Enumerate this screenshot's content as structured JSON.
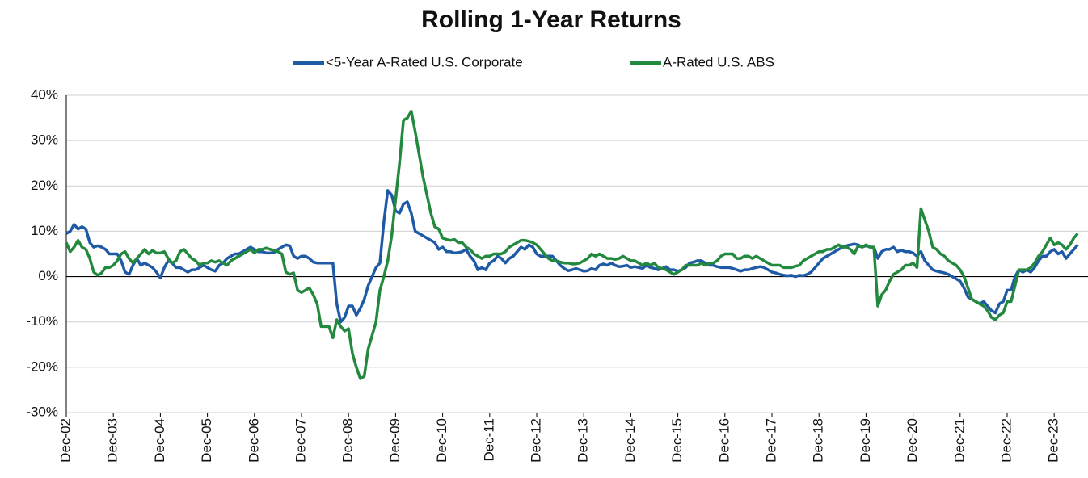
{
  "chart_data": {
    "type": "line",
    "title": "Rolling 1-Year Returns",
    "categories": [
      "Dec-02",
      null,
      null,
      null,
      null,
      null,
      null,
      null,
      null,
      null,
      null,
      null,
      "Dec-03",
      null,
      null,
      null,
      null,
      null,
      null,
      null,
      null,
      null,
      null,
      null,
      "Dec-04",
      null,
      null,
      null,
      null,
      null,
      null,
      null,
      null,
      null,
      null,
      null,
      "Dec-05",
      null,
      null,
      null,
      null,
      null,
      null,
      null,
      null,
      null,
      null,
      null,
      "Dec-06",
      null,
      null,
      null,
      null,
      null,
      null,
      null,
      null,
      null,
      null,
      null,
      "Dec-07",
      null,
      null,
      null,
      null,
      null,
      null,
      null,
      null,
      null,
      null,
      null,
      "Dec-08",
      null,
      null,
      null,
      null,
      null,
      null,
      null,
      null,
      null,
      null,
      null,
      "Dec-09",
      null,
      null,
      null,
      null,
      null,
      null,
      null,
      null,
      null,
      null,
      null,
      "Dec-10",
      null,
      null,
      null,
      null,
      null,
      null,
      null,
      null,
      null,
      null,
      null,
      "Dec-11",
      null,
      null,
      null,
      null,
      null,
      null,
      null,
      null,
      null,
      null,
      null,
      "Dec-12",
      null,
      null,
      null,
      null,
      null,
      null,
      null,
      null,
      null,
      null,
      null,
      "Dec-13",
      null,
      null,
      null,
      null,
      null,
      null,
      null,
      null,
      null,
      null,
      null,
      "Dec-14",
      null,
      null,
      null,
      null,
      null,
      null,
      null,
      null,
      null,
      null,
      null,
      "Dec-15",
      null,
      null,
      null,
      null,
      null,
      null,
      null,
      null,
      null,
      null,
      null,
      "Dec-16",
      null,
      null,
      null,
      null,
      null,
      null,
      null,
      null,
      null,
      null,
      null,
      "Dec-17",
      null,
      null,
      null,
      null,
      null,
      null,
      null,
      null,
      null,
      null,
      null,
      "Dec-18",
      null,
      null,
      null,
      null,
      null,
      null,
      null,
      null,
      null,
      null,
      null,
      "Dec-19",
      null,
      null,
      null,
      null,
      null,
      null,
      null,
      null,
      null,
      null,
      null,
      "Dec-20",
      null,
      null,
      null,
      null,
      null,
      null,
      null,
      null,
      null,
      null,
      null,
      "Dec-21",
      null,
      null,
      null,
      null,
      null,
      null,
      null,
      null,
      null,
      null,
      null,
      "Dec-22",
      null,
      null,
      null,
      null,
      null,
      null,
      null,
      null,
      null,
      null,
      null,
      "Dec-23",
      null,
      null,
      null,
      null,
      null,
      null
    ],
    "series": [
      {
        "name": "<5-Year A-Rated U.S. Corporate",
        "color": "#1f5aa6",
        "values": [
          9.5,
          10,
          11.5,
          10.5,
          11,
          10.5,
          7.5,
          6.5,
          6.8,
          6.5,
          6,
          5,
          5,
          5,
          3.5,
          1,
          0.5,
          2.5,
          4,
          2.5,
          3,
          2.5,
          2,
          1,
          -0.3,
          2,
          3.5,
          3,
          2,
          2,
          1.5,
          1,
          1.5,
          1.5,
          2,
          2.5,
          2,
          1.5,
          1.2,
          2.5,
          3,
          4,
          4.5,
          5,
          5,
          5.5,
          6,
          6.5,
          6,
          5.5,
          5.5,
          5.2,
          5.2,
          5.3,
          6,
          6.5,
          7,
          6.8,
          4.5,
          4,
          4.5,
          4.5,
          4,
          3.2,
          3,
          3,
          3,
          3,
          3,
          -6,
          -10,
          -9,
          -6.5,
          -6.5,
          -8.5,
          -7,
          -5,
          -2,
          0,
          2,
          3,
          12,
          19,
          18,
          14.5,
          14,
          16,
          16.5,
          14,
          10,
          9.5,
          9,
          8.5,
          8,
          7.5,
          6,
          6.5,
          5.5,
          5.5,
          5.2,
          5.3,
          5.5,
          6,
          4.5,
          3.5,
          1.5,
          2,
          1.5,
          3,
          3.5,
          4.5,
          4,
          3,
          4,
          4.5,
          5.5,
          6.5,
          6,
          7,
          6.5,
          5,
          4.5,
          4.5,
          4.5,
          4.5,
          3.5,
          2.5,
          1.8,
          1.3,
          1.5,
          1.8,
          1.5,
          1.2,
          1.3,
          1.8,
          1.5,
          2.5,
          2.8,
          2.5,
          3,
          2.5,
          2.2,
          2.3,
          2.5,
          2,
          2.2,
          2,
          1.8,
          2.5,
          2,
          1.8,
          1.5,
          1.8,
          2.2,
          1.5,
          1.5,
          1.2,
          1.5,
          2,
          3,
          3.2,
          3.5,
          3.5,
          3,
          2.5,
          2.5,
          2.2,
          2,
          2,
          2,
          1.8,
          1.5,
          1.2,
          1.5,
          1.5,
          1.8,
          2,
          2.2,
          2,
          1.5,
          1,
          0.8,
          0.5,
          0.3,
          0.2,
          0.3,
          0,
          0.3,
          0.2,
          0.5,
          1,
          2,
          3,
          4,
          4.5,
          5,
          5.5,
          6,
          6.5,
          6.8,
          7,
          7.2,
          7,
          6.5,
          6.8,
          6.5,
          6.5,
          4,
          5.5,
          6,
          6,
          6.5,
          5.5,
          5.8,
          5.5,
          5.5,
          5.2,
          4.5,
          5.5,
          3.5,
          2.5,
          1.5,
          1.2,
          1,
          0.8,
          0.5,
          0,
          -0.5,
          -1,
          -2.5,
          -4.5,
          -5,
          -5.5,
          -6,
          -5.5,
          -6.5,
          -7.5,
          -8,
          -6,
          -5.5,
          -3,
          -3,
          0,
          1.5,
          1,
          1.5,
          1,
          2,
          3.5,
          4.5,
          4.5,
          5.5,
          6,
          5,
          5.5,
          4,
          5,
          6,
          7
        ]
      },
      {
        "name": "A-Rated U.S. ABS",
        "color": "#23893e",
        "values": [
          7.5,
          5.5,
          6.5,
          8,
          6.5,
          6,
          4,
          1,
          0.3,
          0.8,
          2,
          2,
          2.5,
          3.5,
          5,
          5.5,
          4,
          3,
          4,
          5,
          6,
          5,
          5.8,
          5.2,
          5.2,
          5.5,
          4,
          3,
          3.5,
          5.5,
          6,
          5,
          4,
          3.5,
          2.5,
          3,
          3,
          3.5,
          3.2,
          3.5,
          3,
          2.5,
          3.5,
          4,
          4.5,
          5,
          5.5,
          6,
          5.2,
          6,
          6,
          6.3,
          6,
          5.8,
          5.5,
          5,
          1,
          0.5,
          0.8,
          -3,
          -3.5,
          -3,
          -2.5,
          -4,
          -6,
          -11,
          -11,
          -11,
          -13.5,
          -9.5,
          -11,
          -12,
          -11.5,
          -17,
          -20,
          -22.5,
          -22,
          -16,
          -13,
          -10,
          -3,
          0,
          3.5,
          9,
          17,
          25,
          34.5,
          35,
          36.5,
          32,
          27,
          22,
          18,
          14,
          11,
          10.5,
          8.5,
          8.2,
          8,
          8.2,
          7.5,
          7.5,
          6.5,
          6,
          5,
          4.5,
          4,
          4.5,
          4.5,
          5,
          5,
          5,
          5.5,
          6.5,
          7,
          7.5,
          8,
          8,
          7.8,
          7.5,
          7,
          6,
          5,
          4,
          3.5,
          3.5,
          3.2,
          3,
          3,
          2.8,
          2.8,
          3,
          3.5,
          4,
          5,
          4.5,
          5,
          4.5,
          4,
          4,
          3.8,
          4,
          4.5,
          4,
          3.5,
          3.5,
          3,
          2.5,
          3,
          2.5,
          3,
          2,
          1.8,
          1.5,
          1,
          0.5,
          1,
          1.5,
          2.5,
          2.5,
          2.5,
          2.5,
          3,
          2.5,
          3,
          3,
          3.5,
          4.5,
          5,
          5,
          5,
          4,
          4,
          4.5,
          4.5,
          4,
          4.5,
          4,
          3.5,
          3,
          2.5,
          2.5,
          2.5,
          2,
          2,
          2,
          2.3,
          2.5,
          3.5,
          4,
          4.5,
          5,
          5.5,
          5.5,
          6,
          6,
          6.5,
          7,
          6.5,
          6.5,
          6,
          5,
          6.8,
          6.5,
          7,
          6.5,
          6.5,
          -6.5,
          -4,
          -3,
          -1,
          0.5,
          1,
          1.5,
          2.5,
          2.5,
          3,
          2,
          15,
          12.5,
          10,
          6.5,
          6,
          5,
          4.5,
          3.5,
          3,
          2.5,
          1.5,
          0,
          -2.5,
          -5,
          -5.5,
          -6,
          -6.5,
          -7.5,
          -9,
          -9.5,
          -8.5,
          -8,
          -5.5,
          -5.5,
          -2,
          1.5,
          1.5,
          1.5,
          2,
          3,
          4.5,
          5.5,
          7,
          8.5,
          7,
          7.5,
          7,
          6,
          7,
          8.5,
          9.5
        ]
      }
    ],
    "ylim": [
      -30,
      40
    ],
    "yticks": [
      {
        "value": -30,
        "label": "-30%"
      },
      {
        "value": -20,
        "label": "-20%"
      },
      {
        "value": -10,
        "label": "-10%"
      },
      {
        "value": 0,
        "label": "0%"
      },
      {
        "value": 10,
        "label": "10%"
      },
      {
        "value": 20,
        "label": "20%"
      },
      {
        "value": 30,
        "label": "30%"
      },
      {
        "value": 40,
        "label": "40%"
      }
    ],
    "grid": true,
    "legend": "top"
  }
}
